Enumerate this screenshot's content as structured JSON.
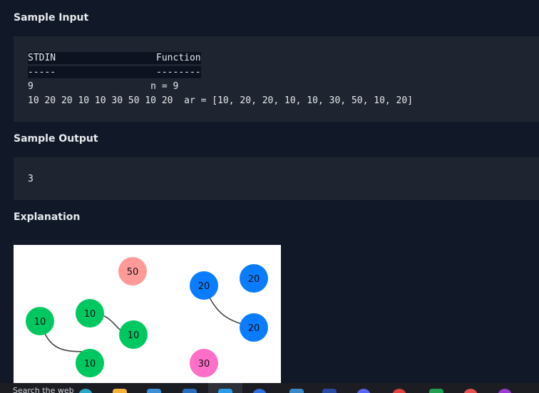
{
  "sections": {
    "sample_input": {
      "title": "Sample Input"
    },
    "sample_output": {
      "title": "Sample Output"
    },
    "explanation": {
      "title": "Explanation"
    }
  },
  "sample_input_lines": [
    "STDIN                  Function",
    "-----                  --------",
    "9                     n = 9",
    "10 20 20 10 10 30 50 10 20  ar = [10, 20, 20, 10, 10, 30, 50, 10, 20]"
  ],
  "sample_output_lines": [
    "3"
  ],
  "figure": {
    "nodes": [
      {
        "label": "50",
        "color": "pink"
      },
      {
        "label": "20",
        "color": "blue"
      },
      {
        "label": "20",
        "color": "blue"
      },
      {
        "label": "10",
        "color": "green"
      },
      {
        "label": "10",
        "color": "green"
      },
      {
        "label": "10",
        "color": "green"
      },
      {
        "label": "20",
        "color": "blue"
      },
      {
        "label": "10",
        "color": "green"
      },
      {
        "label": "30",
        "color": "magenta"
      }
    ],
    "colors": {
      "green": "#00c860",
      "blue": "#0a7cff",
      "pink": "#ff9a98",
      "magenta": "#ff6ec7",
      "edge": "#444444"
    }
  },
  "taskbar": {
    "search_text": "Search the web"
  }
}
